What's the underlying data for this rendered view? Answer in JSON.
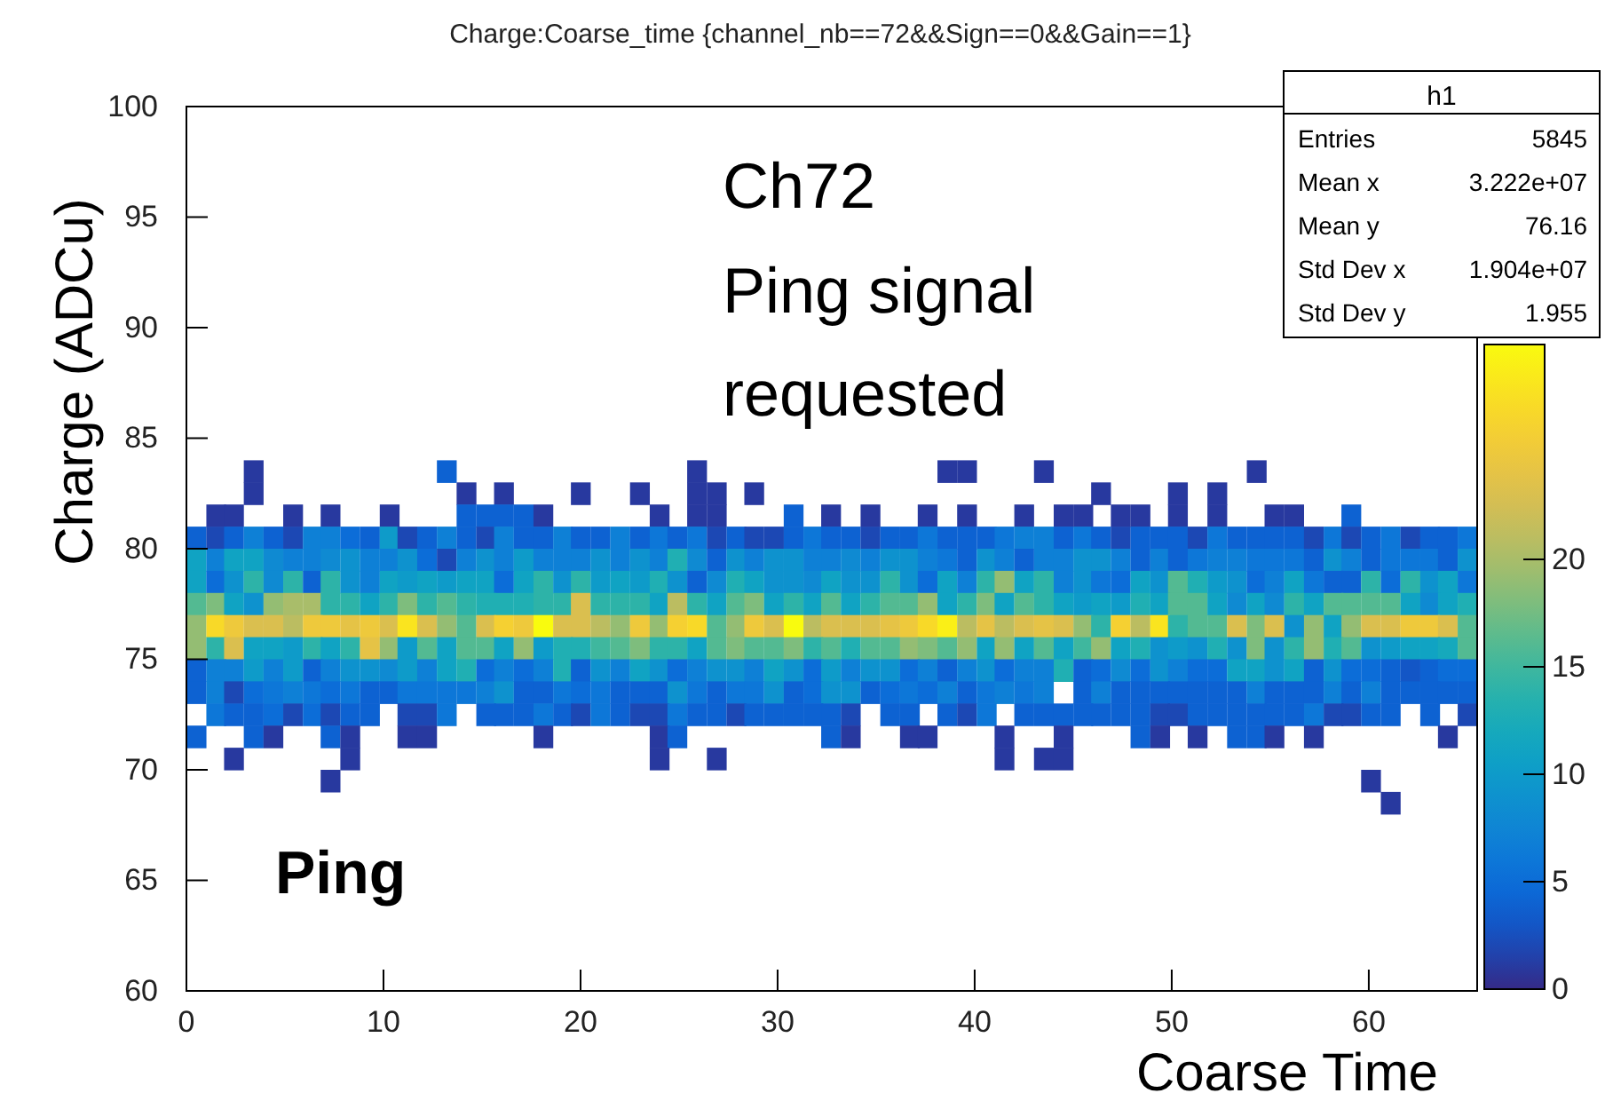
{
  "chart_data": {
    "type": "heatmap",
    "title": "Charge:Coarse_time {channel_nb==72&&Sign==0&&Gain==1}",
    "xlabel": "Coarse Time",
    "ylabel": "Charge (ADCu)",
    "annotations": [
      "Ch72",
      "Ping signal",
      "requested",
      "Ping",
      "h1",
      "Entries",
      "5845",
      "Mean x",
      "3.222e+07",
      "Mean y",
      "76.16",
      "Std Dev x",
      "1.904e+07",
      "Std Dev y",
      "1.955"
    ],
    "xlim": [
      0,
      65.5
    ],
    "xticks": [
      0,
      10,
      20,
      30,
      40,
      50,
      60
    ],
    "ylim": [
      60,
      100
    ],
    "yticks": [
      60,
      65,
      70,
      75,
      80,
      85,
      90,
      95,
      100
    ],
    "clim": [
      0,
      30
    ],
    "cticks": [
      0,
      5,
      10,
      15,
      20
    ],
    "x": [
      0.5,
      1.5,
      2.4,
      3.4,
      4.4,
      5.4,
      6.4,
      7.3,
      8.3,
      9.3,
      10.3,
      11.2,
      12.2,
      13.2,
      14.2,
      15.2,
      16.1,
      17.1,
      18.1,
      19.1,
      20.0,
      21.0,
      22.0,
      23.0,
      24.0,
      24.9,
      25.9,
      26.9,
      27.9,
      28.8,
      29.8,
      30.8,
      31.8,
      32.7,
      33.7,
      34.7,
      35.7,
      36.7,
      37.6,
      38.6,
      39.6,
      40.6,
      41.5,
      42.5,
      43.5,
      44.5,
      45.5,
      46.4,
      47.4,
      48.4,
      49.4,
      50.3,
      51.3,
      52.3,
      53.3,
      54.3,
      55.2,
      56.2,
      57.2,
      58.2,
      59.1,
      60.1,
      61.1,
      62.1,
      63.1,
      64.0,
      65.0
    ],
    "y": [
      83.5,
      82.5,
      81.5,
      80.5,
      79.5,
      78.5,
      77.5,
      76.5,
      75.5,
      74.5,
      73.5,
      72.5,
      71.5,
      70.5,
      69.5,
      68.5
    ],
    "cells": [
      [
        null,
        null,
        null,
        1,
        null,
        null,
        null,
        null,
        null,
        null,
        null,
        null,
        null,
        4,
        null,
        null,
        null,
        null,
        null,
        null,
        null,
        null,
        null,
        null,
        null,
        null,
        1,
        null,
        null,
        null,
        null,
        null,
        null,
        null,
        null,
        null,
        null,
        null,
        null,
        1,
        1,
        null,
        null,
        null,
        1,
        null,
        null,
        null,
        null,
        null,
        null,
        null,
        null,
        null,
        null,
        1,
        null,
        null,
        null,
        null,
        null,
        null,
        null,
        null,
        null,
        null,
        null
      ],
      [
        null,
        null,
        null,
        1,
        null,
        null,
        null,
        null,
        null,
        null,
        null,
        null,
        null,
        null,
        1,
        null,
        1,
        null,
        null,
        null,
        1,
        null,
        null,
        1,
        null,
        null,
        1,
        1,
        null,
        1,
        null,
        null,
        null,
        null,
        null,
        null,
        null,
        null,
        null,
        null,
        null,
        null,
        null,
        null,
        null,
        null,
        null,
        1,
        null,
        null,
        null,
        1,
        null,
        1,
        null,
        null,
        null,
        null,
        null,
        null,
        null,
        null,
        null,
        null,
        null,
        null,
        null
      ],
      [
        null,
        1,
        1,
        null,
        null,
        1,
        null,
        1,
        null,
        null,
        1,
        null,
        null,
        null,
        4,
        4,
        4,
        4,
        1,
        null,
        null,
        null,
        null,
        null,
        1,
        null,
        1,
        1,
        null,
        null,
        null,
        4,
        null,
        1,
        null,
        1,
        null,
        null,
        1,
        null,
        1,
        null,
        null,
        1,
        null,
        1,
        1,
        null,
        1,
        1,
        null,
        1,
        null,
        1,
        null,
        null,
        1,
        1,
        null,
        null,
        4,
        null,
        null,
        null,
        null,
        null,
        null
      ],
      [
        4,
        2,
        4,
        7,
        4,
        2,
        7,
        7,
        5,
        4,
        10,
        2,
        4,
        7,
        4,
        2,
        7,
        4,
        4,
        7,
        4,
        4,
        7,
        4,
        6,
        4,
        6,
        2,
        4,
        2,
        2,
        4,
        6,
        4,
        4,
        2,
        4,
        4,
        6,
        4,
        4,
        4,
        6,
        7,
        7,
        4,
        6,
        4,
        2,
        4,
        4,
        4,
        2,
        6,
        4,
        4,
        4,
        4,
        2,
        6,
        2,
        4,
        6,
        2,
        4,
        4,
        6
      ],
      [
        11,
        7,
        11,
        11,
        8,
        7,
        7,
        8,
        9,
        7,
        7,
        9,
        5,
        2,
        7,
        9,
        7,
        10,
        7,
        7,
        7,
        9,
        7,
        9,
        7,
        13,
        8,
        4,
        9,
        7,
        9,
        9,
        7,
        7,
        8,
        7,
        9,
        9,
        7,
        6,
        4,
        9,
        7,
        4,
        7,
        7,
        9,
        9,
        7,
        4,
        7,
        4,
        6,
        7,
        7,
        6,
        6,
        6,
        4,
        9,
        7,
        4,
        6,
        6,
        6,
        4,
        9
      ],
      [
        11,
        5,
        9,
        14,
        8,
        14,
        4,
        14,
        9,
        7,
        11,
        10,
        11,
        10,
        11,
        11,
        5,
        11,
        14,
        9,
        14,
        10,
        11,
        10,
        13,
        9,
        4,
        8,
        13,
        11,
        9,
        9,
        8,
        11,
        9,
        9,
        14,
        9,
        5,
        11,
        7,
        14,
        19,
        11,
        14,
        7,
        9,
        6,
        5,
        11,
        9,
        16,
        13,
        10,
        9,
        5,
        7,
        11,
        6,
        4,
        4,
        14,
        5,
        14,
        9,
        11,
        6
      ],
      [
        16,
        18,
        11,
        9,
        19,
        20,
        20,
        14,
        14,
        11,
        14,
        18,
        14,
        16,
        14,
        13,
        13,
        13,
        14,
        14,
        23,
        14,
        14,
        14,
        11,
        21,
        14,
        11,
        16,
        18,
        11,
        14,
        11,
        16,
        11,
        14,
        16,
        16,
        19,
        11,
        14,
        18,
        11,
        16,
        14,
        11,
        10,
        11,
        10,
        13,
        11,
        16,
        16,
        11,
        8,
        11,
        8,
        14,
        11,
        16,
        16,
        16,
        16,
        11,
        8,
        11,
        13
      ],
      [
        19,
        27,
        25,
        23,
        23,
        21,
        25,
        25,
        24,
        25,
        23,
        28,
        23,
        19,
        16,
        23,
        26,
        25,
        30,
        23,
        23,
        21,
        19,
        25,
        19,
        26,
        27,
        16,
        19,
        25,
        23,
        30,
        21,
        23,
        23,
        23,
        24,
        25,
        27,
        29,
        21,
        24,
        21,
        23,
        24,
        23,
        19,
        14,
        26,
        21,
        28,
        14,
        16,
        16,
        23,
        18,
        23,
        9,
        19,
        11,
        19,
        23,
        23,
        25,
        25,
        23,
        16
      ],
      [
        19,
        14,
        23,
        11,
        11,
        10,
        14,
        11,
        14,
        24,
        19,
        10,
        16,
        11,
        16,
        16,
        11,
        19,
        10,
        13,
        13,
        15,
        16,
        18,
        14,
        14,
        11,
        16,
        18,
        16,
        16,
        18,
        14,
        16,
        13,
        16,
        16,
        19,
        18,
        16,
        19,
        11,
        19,
        11,
        16,
        11,
        15,
        19,
        11,
        13,
        9,
        10,
        9,
        13,
        9,
        18,
        9,
        14,
        19,
        13,
        16,
        9,
        10,
        11,
        11,
        12,
        16
      ],
      [
        4,
        7,
        7,
        10,
        7,
        10,
        4,
        7,
        9,
        9,
        8,
        10,
        7,
        11,
        13,
        5,
        7,
        5,
        7,
        13,
        4,
        9,
        7,
        11,
        9,
        5,
        7,
        9,
        9,
        7,
        11,
        9,
        5,
        10,
        7,
        9,
        9,
        5,
        7,
        4,
        7,
        9,
        5,
        7,
        7,
        13,
        4,
        5,
        8,
        5,
        9,
        7,
        5,
        5,
        11,
        11,
        9,
        11,
        4,
        9,
        5,
        5,
        4,
        3,
        4,
        5,
        5
      ],
      [
        4,
        7,
        2,
        5,
        6,
        7,
        6,
        5,
        6,
        4,
        4,
        6,
        6,
        6,
        6,
        7,
        9,
        4,
        4,
        6,
        5,
        6,
        4,
        4,
        4,
        9,
        6,
        4,
        6,
        6,
        9,
        4,
        5,
        9,
        9,
        4,
        5,
        6,
        5,
        7,
        4,
        6,
        7,
        6,
        7,
        null,
        4,
        7,
        4,
        4,
        4,
        4,
        4,
        4,
        4,
        7,
        4,
        4,
        4,
        7,
        4,
        7,
        4,
        4,
        4,
        4,
        4
      ],
      [
        null,
        6,
        4,
        4,
        5,
        2,
        5,
        2,
        4,
        4,
        null,
        2,
        2,
        6,
        null,
        4,
        4,
        4,
        6,
        4,
        2,
        6,
        4,
        2,
        2,
        6,
        4,
        4,
        2,
        4,
        4,
        4,
        4,
        4,
        2,
        null,
        4,
        4,
        null,
        4,
        2,
        6,
        null,
        4,
        4,
        4,
        4,
        4,
        4,
        4,
        2,
        2,
        4,
        4,
        4,
        4,
        4,
        4,
        6,
        2,
        2,
        4,
        4,
        null,
        4,
        null,
        2
      ],
      [
        4,
        null,
        null,
        4,
        1,
        null,
        null,
        4,
        1,
        null,
        null,
        1,
        1,
        null,
        null,
        null,
        null,
        null,
        1,
        null,
        null,
        null,
        null,
        null,
        1,
        4,
        null,
        null,
        null,
        null,
        null,
        null,
        null,
        4,
        1,
        null,
        null,
        1,
        1,
        null,
        null,
        null,
        1,
        null,
        null,
        1,
        null,
        null,
        null,
        4,
        1,
        null,
        1,
        null,
        4,
        4,
        1,
        null,
        1,
        null,
        null,
        null,
        null,
        null,
        null,
        1,
        null
      ],
      [
        null,
        null,
        1,
        null,
        null,
        null,
        null,
        null,
        1,
        null,
        null,
        null,
        null,
        null,
        null,
        null,
        null,
        null,
        null,
        null,
        null,
        null,
        null,
        null,
        1,
        null,
        null,
        1,
        null,
        null,
        null,
        null,
        null,
        null,
        null,
        null,
        null,
        null,
        null,
        null,
        null,
        null,
        1,
        null,
        1,
        1,
        null,
        null,
        null,
        null,
        null,
        null,
        null,
        null,
        null,
        null,
        null,
        null,
        null,
        null,
        null,
        null,
        null,
        null,
        null,
        null,
        null
      ],
      [
        null,
        null,
        null,
        null,
        null,
        null,
        null,
        1,
        null,
        null,
        null,
        null,
        null,
        null,
        null,
        null,
        null,
        null,
        null,
        null,
        null,
        null,
        null,
        null,
        null,
        null,
        null,
        null,
        null,
        null,
        null,
        null,
        null,
        null,
        null,
        null,
        null,
        null,
        null,
        null,
        null,
        null,
        null,
        null,
        null,
        null,
        null,
        null,
        null,
        null,
        null,
        null,
        null,
        null,
        null,
        null,
        null,
        null,
        null,
        null,
        null,
        1,
        null,
        null,
        null,
        null,
        null
      ],
      [
        null,
        null,
        null,
        null,
        null,
        null,
        null,
        null,
        null,
        null,
        null,
        null,
        null,
        null,
        null,
        null,
        null,
        null,
        null,
        null,
        null,
        null,
        null,
        null,
        null,
        null,
        null,
        null,
        null,
        null,
        null,
        null,
        null,
        null,
        null,
        null,
        null,
        null,
        null,
        null,
        null,
        null,
        null,
        null,
        null,
        null,
        null,
        null,
        null,
        null,
        null,
        null,
        null,
        null,
        null,
        null,
        null,
        null,
        null,
        null,
        null,
        null,
        1,
        null,
        null,
        null,
        null
      ]
    ]
  }
}
